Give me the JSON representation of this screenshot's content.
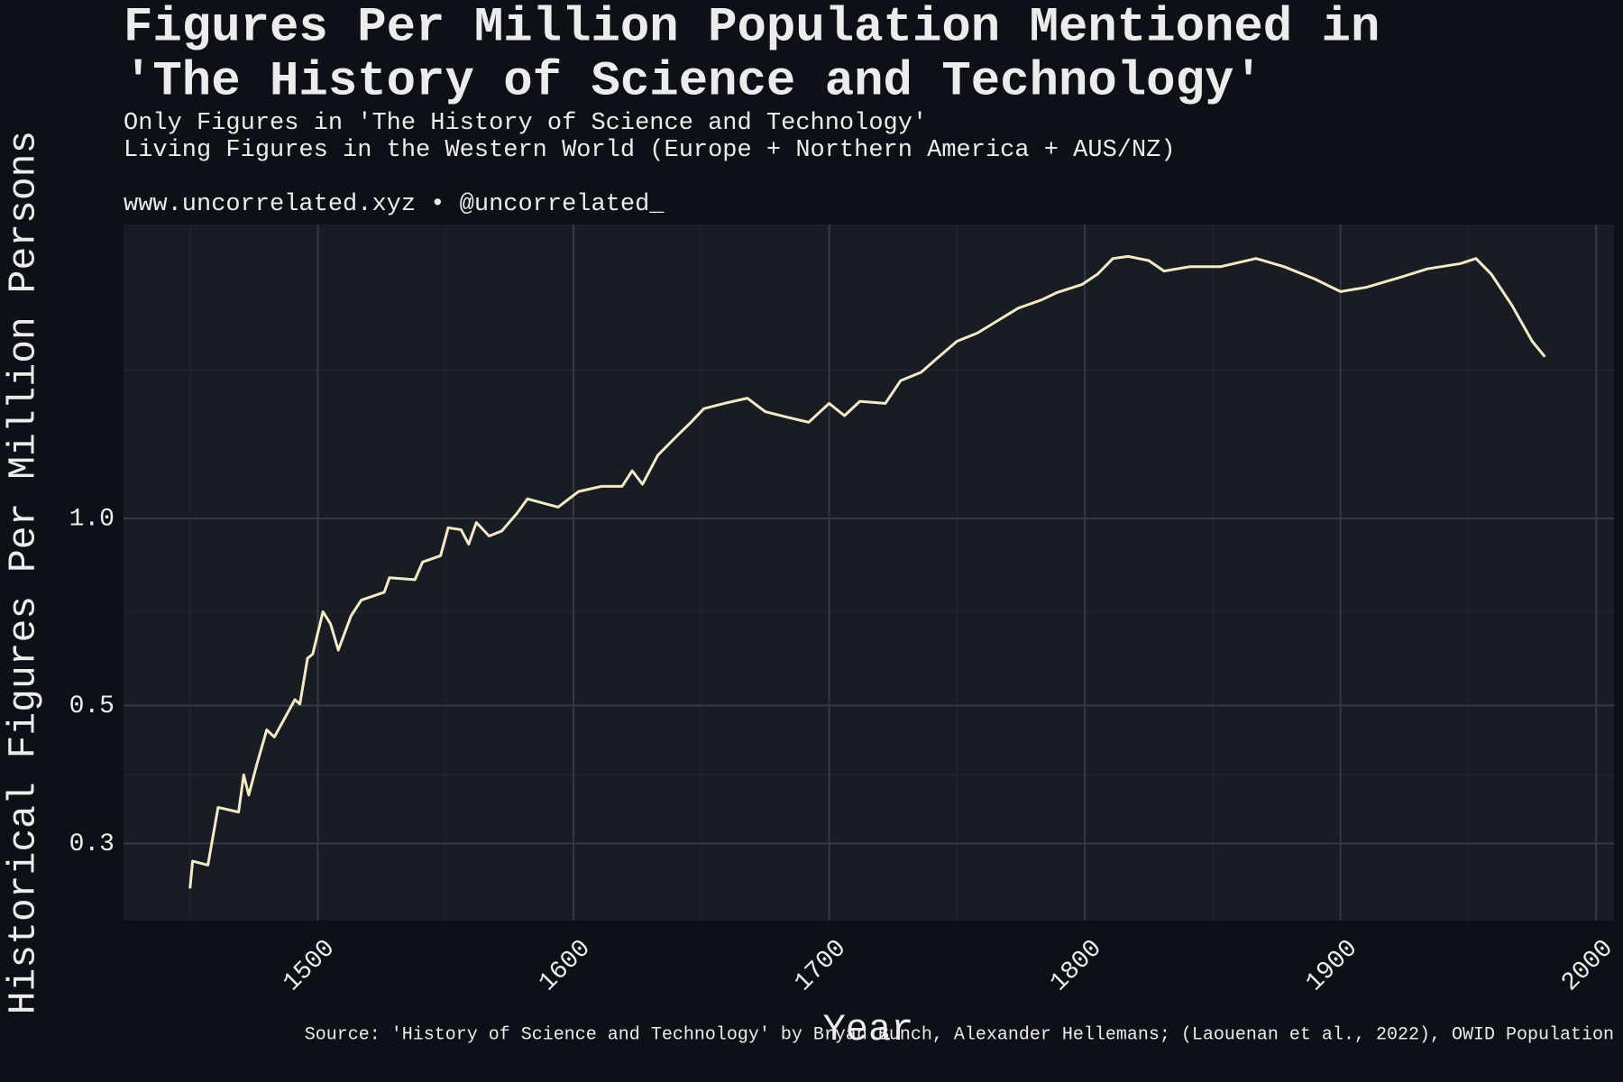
{
  "chart_data": {
    "type": "line",
    "title": [
      "Figures Per Million Population Mentioned in",
      "'The History of Science and Technology'"
    ],
    "subtitle": [
      "Only Figures in 'The History of Science and Technology'",
      "Living Figures in the Western World (Europe + Northern America + AUS/NZ)"
    ],
    "credit": "www.uncorrelated.xyz • @uncorrelated_",
    "caption": "Source: 'History of Science and Technology' by Bryan Bunch, Alexander Hellemans; (Laouenan et al., 2022), OWID Population",
    "x_label": "Year",
    "y_label": "Historical Figures Per Million Persons",
    "x": [
      1450,
      1451,
      1457,
      1461,
      1469,
      1471,
      1473,
      1476,
      1480,
      1483,
      1491,
      1493,
      1496,
      1498,
      1502,
      1505,
      1508,
      1513,
      1517,
      1526,
      1528,
      1538,
      1541,
      1548,
      1551,
      1556,
      1559,
      1562,
      1567,
      1572,
      1578,
      1582,
      1594,
      1602,
      1611,
      1619,
      1623,
      1627,
      1633,
      1641,
      1646,
      1651,
      1659,
      1668,
      1675,
      1683,
      1692,
      1700,
      1706,
      1712,
      1722,
      1728,
      1736,
      1742,
      1750,
      1758,
      1766,
      1774,
      1783,
      1789,
      1799,
      1805,
      1811,
      1817,
      1825,
      1831,
      1841,
      1853,
      1867,
      1878,
      1890,
      1900,
      1910,
      1924,
      1934,
      1947,
      1953,
      1959,
      1967,
      1975,
      1980
    ],
    "values": [
      0.254,
      0.281,
      0.277,
      0.343,
      0.337,
      0.387,
      0.359,
      0.4,
      0.457,
      0.445,
      0.511,
      0.503,
      0.596,
      0.605,
      0.708,
      0.676,
      0.614,
      0.697,
      0.739,
      0.761,
      0.803,
      0.797,
      0.851,
      0.871,
      0.966,
      0.959,
      0.909,
      0.985,
      0.937,
      0.955,
      1.02,
      1.075,
      1.043,
      1.105,
      1.126,
      1.126,
      1.193,
      1.135,
      1.264,
      1.364,
      1.428,
      1.502,
      1.531,
      1.561,
      1.485,
      1.457,
      1.428,
      1.531,
      1.463,
      1.543,
      1.531,
      1.666,
      1.718,
      1.806,
      1.927,
      1.987,
      2.081,
      2.179,
      2.246,
      2.307,
      2.379,
      2.472,
      2.619,
      2.639,
      2.599,
      2.5,
      2.54,
      2.54,
      2.619,
      2.54,
      2.427,
      2.317,
      2.353,
      2.446,
      2.52,
      2.57,
      2.619,
      2.472,
      2.204,
      1.927,
      1.82
    ],
    "color": "#f5eac8",
    "xlim": [
      1424,
      2007
    ],
    "xticks": [
      1500,
      1600,
      1700,
      1800,
      1900,
      2000
    ],
    "xminor": [
      1450,
      1550,
      1650,
      1750,
      1850,
      1950
    ],
    "ylim": [
      0.2255,
      2.97
    ],
    "yscale": "log",
    "yticks": [
      0.3,
      0.5,
      {
        "value": 1,
        "label": "1.0"
      }
    ],
    "yminor": [
      0.387,
      0.707,
      1.732
    ],
    "grid": true
  }
}
